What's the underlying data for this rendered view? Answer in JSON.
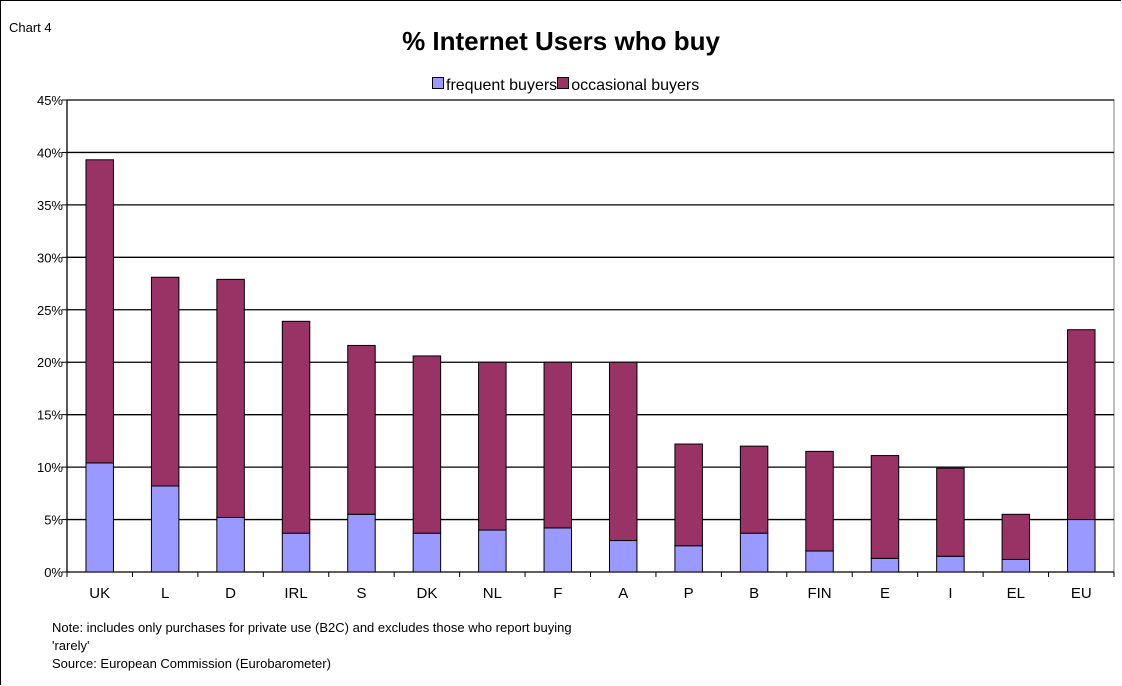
{
  "chart_label": "Chart 4",
  "chart_data": {
    "type": "bar",
    "stacked": true,
    "title": "% Internet Users who buy",
    "xlabel": "",
    "ylabel": "",
    "categories": [
      "UK",
      "L",
      "D",
      "IRL",
      "S",
      "DK",
      "NL",
      "F",
      "A",
      "P",
      "B",
      "FIN",
      "E",
      "I",
      "EL",
      "EU"
    ],
    "series": [
      {
        "name": "frequent buyers",
        "color": "#9999ff",
        "values": [
          10.4,
          8.2,
          5.2,
          3.7,
          5.5,
          3.7,
          4.0,
          4.2,
          3.0,
          2.5,
          3.7,
          2.0,
          1.3,
          1.5,
          1.2,
          5.0
        ]
      },
      {
        "name": "occasional buyers",
        "color": "#993366",
        "values": [
          28.9,
          19.9,
          22.7,
          20.2,
          16.1,
          16.9,
          16.0,
          15.8,
          17.0,
          9.7,
          8.3,
          9.5,
          9.8,
          8.4,
          4.3,
          18.1
        ]
      }
    ],
    "ylim": [
      0,
      45
    ],
    "yticks": [
      "0%",
      "5%",
      "10%",
      "15%",
      "20%",
      "25%",
      "30%",
      "35%",
      "40%",
      "45%"
    ],
    "grid": true,
    "legend_position": "top"
  },
  "notes": {
    "line1": "Note: includes only purchases for private use (B2C) and excludes those  who report buying",
    "line2": "'rarely'",
    "source": "Source:   European Commission (Eurobarometer)"
  }
}
